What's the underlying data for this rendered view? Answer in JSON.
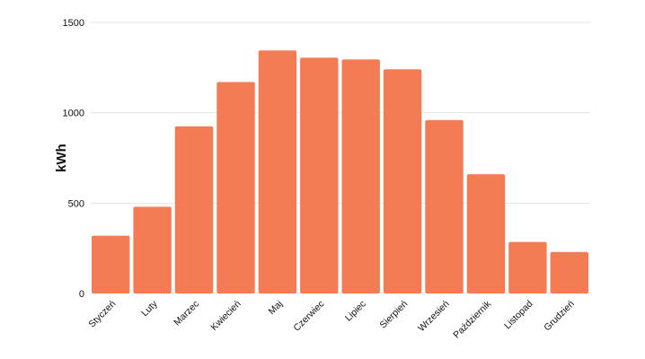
{
  "chart_data": {
    "type": "bar",
    "title": "",
    "xlabel": "",
    "ylabel": "kWh",
    "categories": [
      "Styczeń",
      "Luty",
      "Marzec",
      "Kwiecień",
      "Maj",
      "Czerwiec",
      "Lipiec",
      "Sierpień",
      "Wrzesień",
      "Październik",
      "Listopad",
      "Grudzień"
    ],
    "values": [
      320,
      480,
      925,
      1170,
      1345,
      1305,
      1295,
      1240,
      960,
      660,
      285,
      230
    ],
    "ylim": [
      0,
      1500
    ],
    "yticks": [
      0,
      500,
      1000,
      1500
    ],
    "grid": true,
    "bar_color": "#f47c54"
  }
}
